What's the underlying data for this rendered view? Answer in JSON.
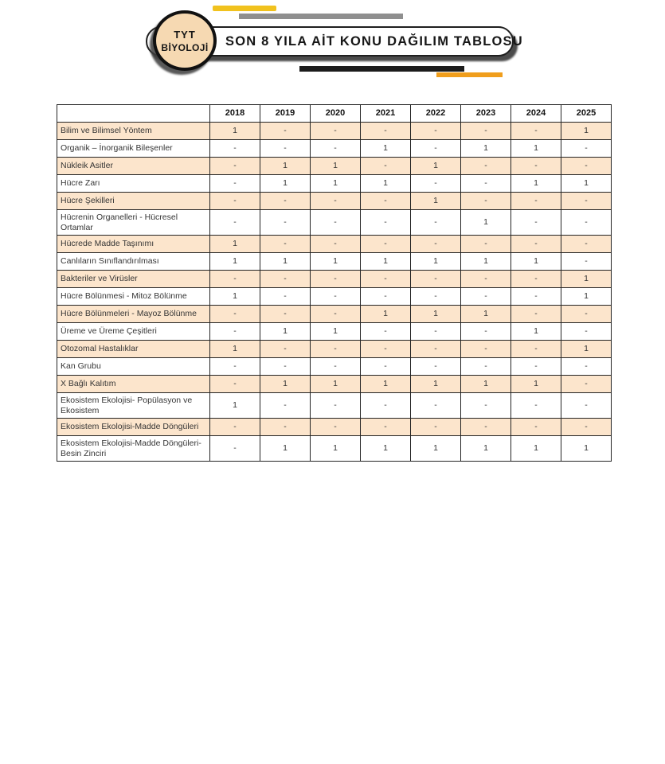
{
  "header": {
    "badge_line1": "TYT",
    "badge_line2": "BİYOLOJİ",
    "title": "SON 8 YILA AİT KONU DAĞILIM TABLOSU"
  },
  "colors": {
    "row_shade": "#fce5cc",
    "badge_fill": "#f6d9b2",
    "bar_yellow": "#f1c21e",
    "bar_gray": "#8f8f8f",
    "bar_black": "#1c1c1c",
    "bar_orange": "#f09e1c",
    "border_dark": "#242424",
    "text_dark": "#353535"
  },
  "table": {
    "years": [
      "2018",
      "2019",
      "2020",
      "2021",
      "2022",
      "2023",
      "2024",
      "2025"
    ],
    "rows": [
      {
        "label": "Bilim ve Bilimsel Yöntem",
        "shaded": true,
        "values": [
          "1",
          "-",
          "-",
          "-",
          "-",
          "-",
          "-",
          "1"
        ]
      },
      {
        "label": "Organik – İnorganik Bileşenler",
        "shaded": false,
        "values": [
          "-",
          "-",
          "-",
          "1",
          "-",
          "1",
          "1",
          "-"
        ]
      },
      {
        "label": "Nükleik Asitler",
        "shaded": true,
        "values": [
          "-",
          "1",
          "1",
          "-",
          "1",
          "-",
          "-",
          "-"
        ]
      },
      {
        "label": "Hücre Zarı",
        "shaded": false,
        "values": [
          "-",
          "1",
          "1",
          "1",
          "-",
          "-",
          "1",
          "1"
        ]
      },
      {
        "label": "Hücre Şekilleri",
        "shaded": true,
        "values": [
          "-",
          "-",
          "-",
          "-",
          "1",
          "-",
          "-",
          "-"
        ]
      },
      {
        "label": "Hücrenin Organelleri - Hücresel Ortamlar",
        "shaded": false,
        "values": [
          "-",
          "-",
          "-",
          "-",
          "-",
          "1",
          "-",
          "-"
        ]
      },
      {
        "label": "Hücrede Madde Taşınımı",
        "shaded": true,
        "values": [
          "1",
          "-",
          "-",
          "-",
          "-",
          "-",
          "-",
          "-"
        ]
      },
      {
        "label": "Canlıların Sınıflandırılması",
        "shaded": false,
        "values": [
          "1",
          "1",
          "1",
          "1",
          "1",
          "1",
          "1",
          "-"
        ]
      },
      {
        "label": "Bakteriler ve Virüsler",
        "shaded": true,
        "values": [
          "-",
          "-",
          "-",
          "-",
          "-",
          "-",
          "-",
          "1"
        ]
      },
      {
        "label": "Hücre Bölünmesi - Mitoz Bölünme",
        "shaded": false,
        "values": [
          "1",
          "-",
          "-",
          "-",
          "-",
          "-",
          "-",
          "1"
        ]
      },
      {
        "label": "Hücre Bölünmeleri - Mayoz Bölünme",
        "shaded": true,
        "values": [
          "-",
          "-",
          "-",
          "1",
          "1",
          "1",
          "-",
          "-"
        ]
      },
      {
        "label": "Üreme ve Üreme Çeşitleri",
        "shaded": false,
        "values": [
          "-",
          "1",
          "1",
          "-",
          "-",
          "-",
          "1",
          "-"
        ]
      },
      {
        "label": "Otozomal Hastalıklar",
        "shaded": true,
        "values": [
          "1",
          "-",
          "-",
          "-",
          "-",
          "-",
          "-",
          "1"
        ]
      },
      {
        "label": "Kan Grubu",
        "shaded": false,
        "values": [
          "-",
          "-",
          "-",
          "-",
          "-",
          "-",
          "-",
          "-"
        ]
      },
      {
        "label": "X Bağlı Kalıtım",
        "shaded": true,
        "values": [
          "-",
          "1",
          "1",
          "1",
          "1",
          "1",
          "1",
          "-"
        ]
      },
      {
        "label": "Ekosistem Ekolojisi- Popülasyon ve Ekosistem",
        "shaded": false,
        "values": [
          "1",
          "-",
          "-",
          "-",
          "-",
          "-",
          "-",
          "-"
        ]
      },
      {
        "label": "Ekosistem Ekolojisi-Madde Döngüleri",
        "shaded": true,
        "values": [
          "-",
          "-",
          "-",
          "-",
          "-",
          "-",
          "-",
          "-"
        ]
      },
      {
        "label": "Ekosistem Ekolojisi-Madde Döngüleri-Besin Zinciri",
        "shaded": false,
        "values": [
          "-",
          "1",
          "1",
          "1",
          "1",
          "1",
          "1",
          "1"
        ]
      }
    ]
  }
}
